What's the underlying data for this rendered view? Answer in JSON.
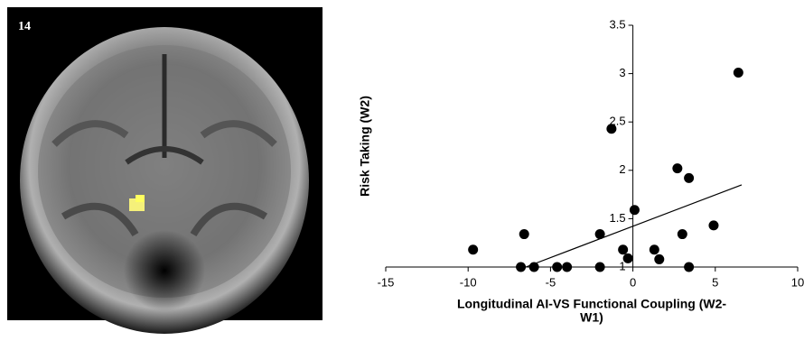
{
  "image_label": "14",
  "chart_data": {
    "type": "scatter",
    "xlabel": [
      "Longitudinal AI-VS Functional Coupling (W2-",
      "W1)"
    ],
    "ylabel": "Risk Taking (W2)",
    "x": [
      -9.7,
      -6.6,
      -6.8,
      -6.0,
      -4.6,
      -4.0,
      -2.0,
      -2.0,
      -1.3,
      -0.6,
      -0.3,
      0.1,
      1.3,
      1.6,
      2.7,
      3.0,
      3.4,
      3.4,
      4.9,
      6.4
    ],
    "values": [
      1.18,
      1.34,
      1.0,
      1.0,
      1.0,
      1.0,
      1.0,
      1.34,
      2.43,
      1.18,
      1.09,
      1.59,
      1.18,
      1.08,
      2.02,
      1.34,
      1.92,
      1.0,
      1.43,
      3.01
    ],
    "color": "#000000",
    "trendline": {
      "x": [
        -6.5,
        6.6
      ],
      "y": [
        1.0,
        1.85
      ]
    },
    "xlim": [
      -15,
      10
    ],
    "ylim": [
      1,
      3.5
    ],
    "xticks": [
      -15,
      -10,
      -5,
      0,
      5,
      10
    ],
    "yticks": [
      1,
      1.5,
      2,
      2.5,
      3,
      3.5
    ]
  }
}
